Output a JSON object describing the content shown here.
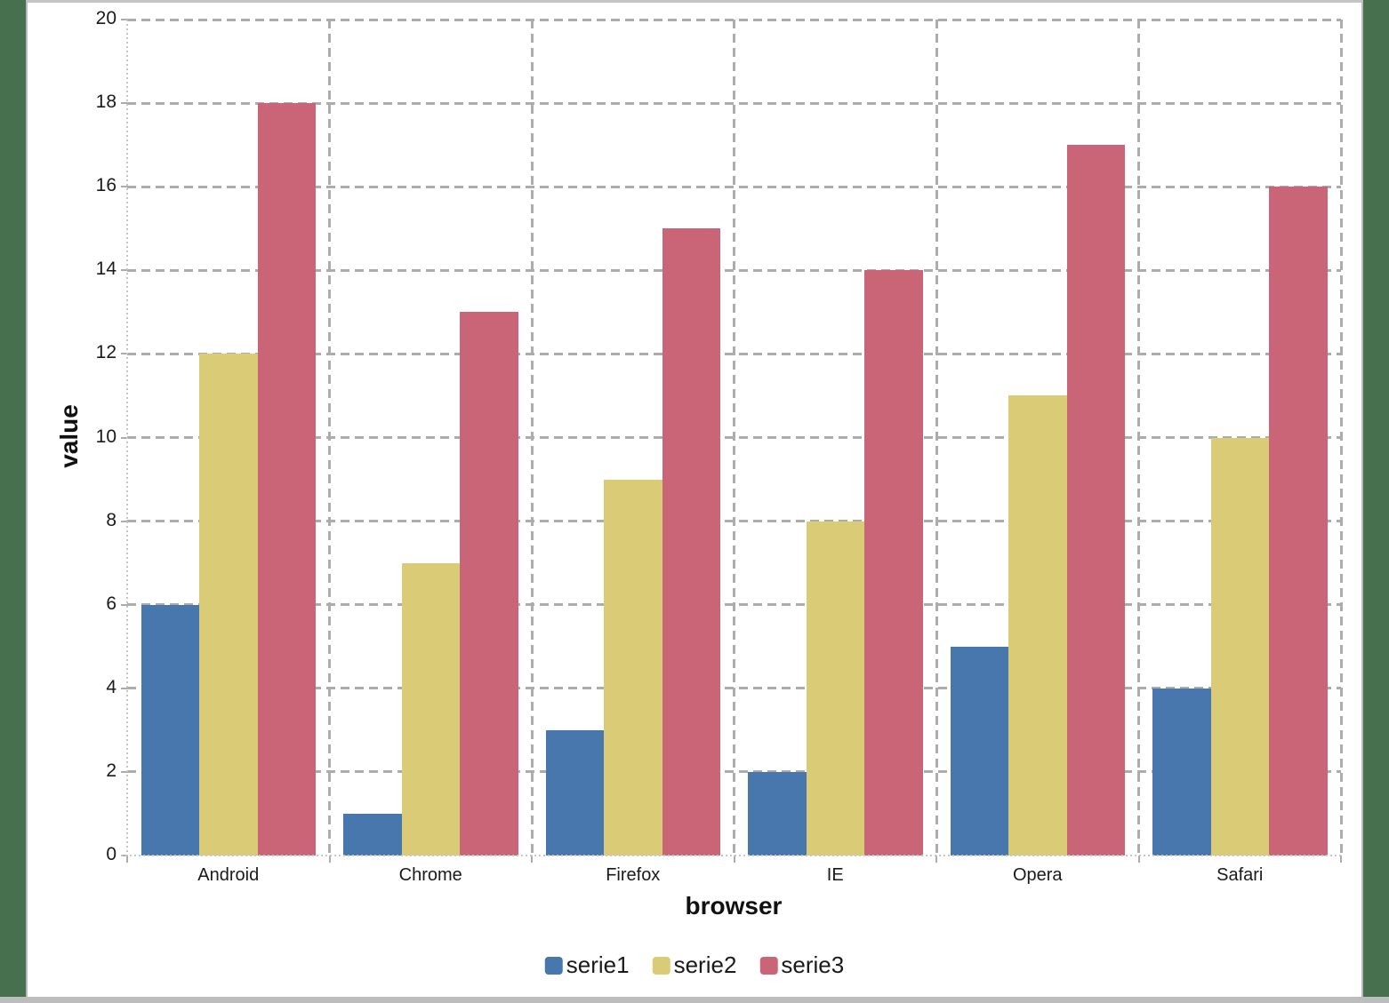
{
  "chart_data": {
    "type": "bar",
    "title": "",
    "xlabel": "browser",
    "ylabel": "value",
    "categories": [
      "Android",
      "Chrome",
      "Firefox",
      "IE",
      "Opera",
      "Safari"
    ],
    "series": [
      {
        "name": "serie1",
        "color": "#4777AC",
        "values": [
          6,
          1,
          3,
          2,
          5,
          4
        ]
      },
      {
        "name": "serie2",
        "color": "#DACC77",
        "values": [
          12,
          7,
          9,
          8,
          11,
          10
        ]
      },
      {
        "name": "serie3",
        "color": "#CA6577",
        "values": [
          18,
          13,
          15,
          14,
          17,
          16
        ]
      }
    ],
    "ylim": [
      0,
      20
    ],
    "ytick_step": 2,
    "yticks": [
      0,
      2,
      4,
      6,
      8,
      10,
      12,
      14,
      16,
      18,
      20
    ],
    "grid": "dashed",
    "legend_position": "bottom"
  },
  "colors": {
    "desktop_background": "#47704F",
    "panel_background": "#FFFFFF",
    "window_border": "#BDBDBD",
    "gridline": "#ACACAC",
    "axis_line": "#C6C6C6",
    "text": "#1A1A1A"
  }
}
